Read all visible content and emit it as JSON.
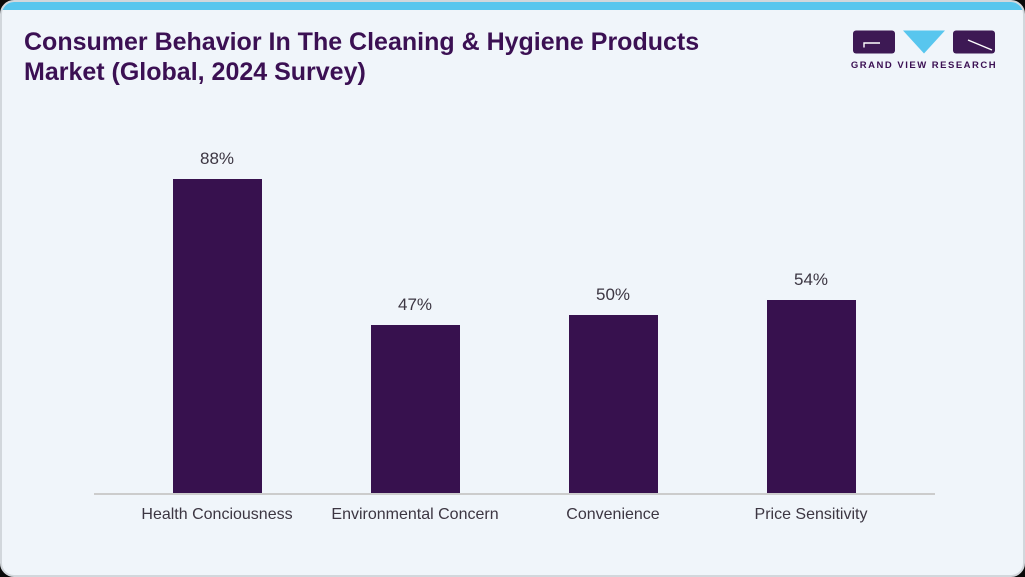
{
  "header": {
    "title": "Consumer Behavior In The Cleaning & Hygiene Products Market (Global, 2024 Survey)"
  },
  "branding": {
    "logo_text": "GRAND VIEW RESEARCH"
  },
  "colors": {
    "accent_bar": "#58c6ee",
    "bar_fill": "#37114e",
    "title": "#3b1053",
    "card_bg": "#f0f5fa",
    "axis_line": "#cccccc",
    "label_text": "#3c3642",
    "logo_square": "#3d1954",
    "logo_triangle": "#58c6ee"
  },
  "chart_data": {
    "type": "bar",
    "title": "Consumer Behavior In The Cleaning & Hygiene Products Market (Global, 2024 Survey)",
    "categories": [
      "Health Conciousness",
      "Environmental Concern",
      "Convenience",
      "Price Sensitivity"
    ],
    "values": [
      88,
      47,
      50,
      54
    ],
    "value_labels": [
      "88%",
      "47%",
      "50%",
      "54%"
    ],
    "unit": "%",
    "ylim": [
      0,
      100
    ],
    "grid": "off",
    "legend": "none",
    "xlabel": "",
    "ylabel": ""
  }
}
